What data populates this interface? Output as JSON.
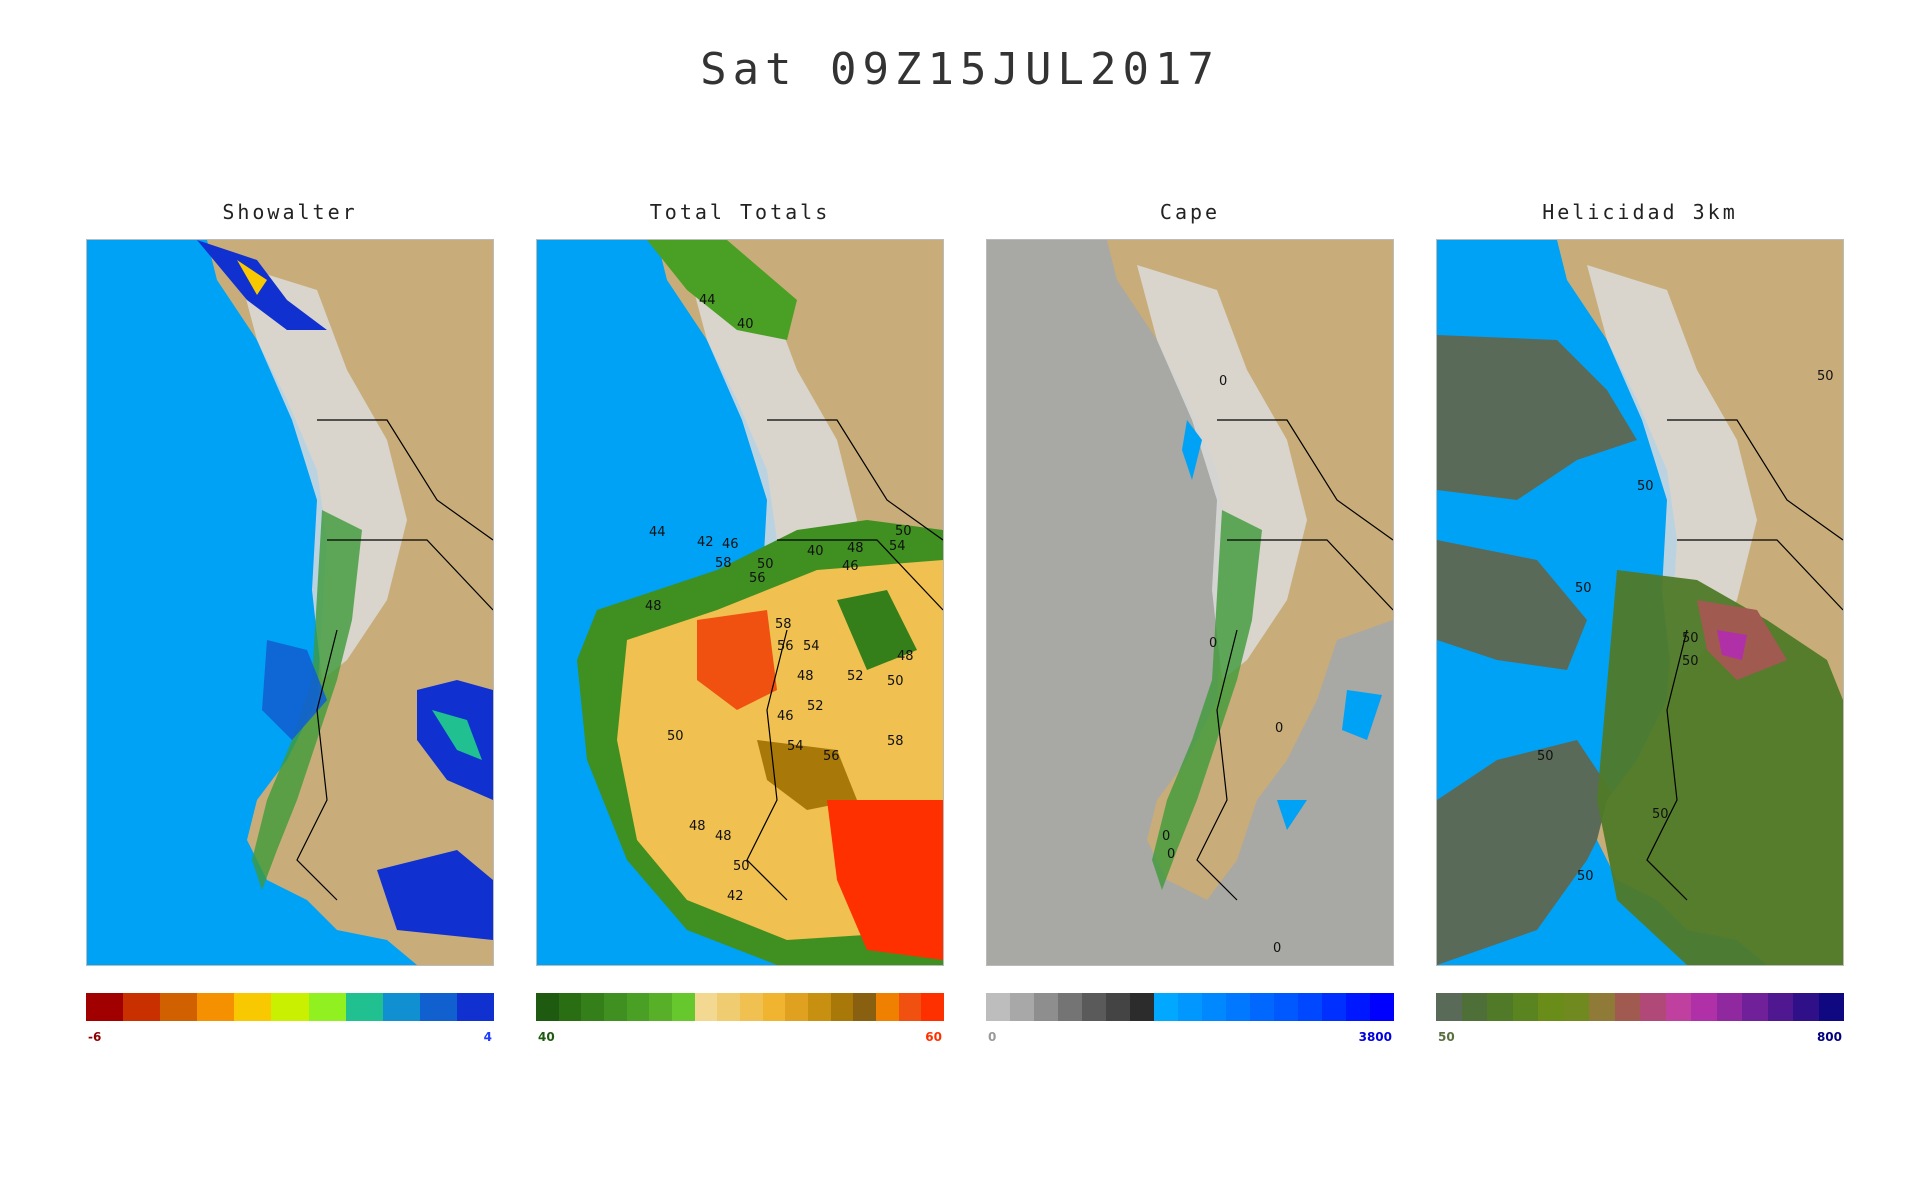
{
  "title": "Sat 09Z15JUL2017",
  "colors": {
    "ocean": "#00a2f5",
    "land": "#c8ad7a",
    "andes": "#e5e5e5",
    "forest": "#3f9a3a",
    "border": "#000000"
  },
  "panels": [
    {
      "name": "showalter",
      "title": "Showalter",
      "min_label": "-6",
      "max_label": "4",
      "min_color": "#8b0000",
      "max_color": "#1e3cff",
      "colorbar": [
        "#a00000",
        "#c83000",
        "#d06000",
        "#f59000",
        "#f8c800",
        "#c8f000",
        "#90f020",
        "#20c090",
        "#1090d0",
        "#1060d0",
        "#1030d0"
      ]
    },
    {
      "name": "total-totals",
      "title": "Total  Totals",
      "min_label": "40",
      "max_label": "60",
      "min_color": "#1e5a10",
      "max_color": "#ff3000",
      "colorbar": [
        "#1e5a10",
        "#2a6e14",
        "#357f1a",
        "#3f9020",
        "#4aa024",
        "#58b028",
        "#66c82c",
        "#f2d890",
        "#f0cc70",
        "#f0c050",
        "#f0b430",
        "#e0a020",
        "#c89010",
        "#a87808",
        "#886010",
        "#f08000",
        "#f05010",
        "#ff3000"
      ],
      "contour_labels": [
        "44",
        "40",
        "44",
        "42",
        "46",
        "40",
        "48",
        "50",
        "54",
        "58",
        "50",
        "56",
        "46",
        "48",
        "58",
        "56",
        "54",
        "48",
        "52",
        "50",
        "48",
        "50",
        "46",
        "52",
        "54",
        "56",
        "58",
        "48",
        "48",
        "50",
        "42"
      ]
    },
    {
      "name": "cape",
      "title": "Cape",
      "min_label": "0",
      "max_label": "3800",
      "min_color": "#999999",
      "max_color": "#0000e0",
      "colorbar": [
        "#bdbdbd",
        "#a8a8a8",
        "#8e8e8e",
        "#747474",
        "#5a5a5a",
        "#444444",
        "#2c2c2c",
        "#00a8ff",
        "#0098ff",
        "#0088ff",
        "#0078ff",
        "#0068ff",
        "#0058ff",
        "#0048ff",
        "#0030ff",
        "#0018ff",
        "#0000ff"
      ],
      "contour_labels": [
        "0",
        "0",
        "0",
        "0",
        "0",
        "0"
      ]
    },
    {
      "name": "helicidad-3km",
      "title": "Helicidad 3km",
      "min_label": "50",
      "max_label": "800",
      "min_color": "#5a7040",
      "max_color": "#000080",
      "colorbar": [
        "#5a6a58",
        "#4e7038",
        "#507a28",
        "#5a8420",
        "#6a8c18",
        "#708a20",
        "#907a38",
        "#a05a50",
        "#b04878",
        "#c040a0",
        "#b030a8",
        "#9028a0",
        "#702098",
        "#501890",
        "#301088",
        "#100880"
      ],
      "contour_labels": [
        "50",
        "50",
        "50",
        "50",
        "50",
        "50",
        "50",
        "50"
      ]
    }
  ]
}
